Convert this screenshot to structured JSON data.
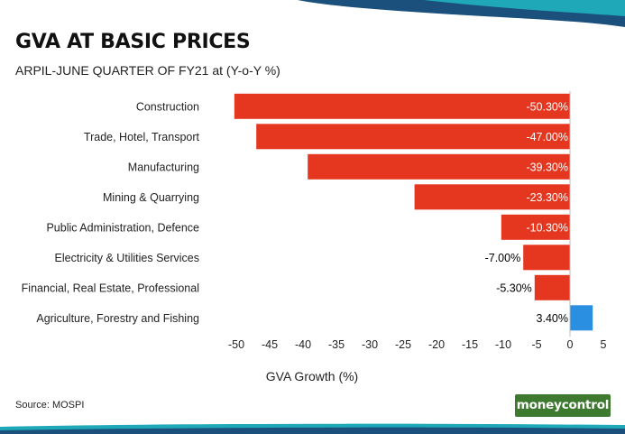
{
  "title": "GVA AT BASIC PRICES",
  "subtitle": "ARPIL-JUNE QUARTER OF FY21 at (Y-o-Y %)",
  "source": "Source: MOSPI",
  "logo_text": "moneycontrol",
  "colors": {
    "negative": "#e5371f",
    "positive": "#2a8fe0",
    "text": "#222222",
    "accent_teal": "#1fa8b8",
    "accent_navy": "#1b4f7c"
  },
  "chart_data": {
    "type": "bar",
    "orientation": "horizontal",
    "title": "GVA AT BASIC PRICES",
    "subtitle": "ARPIL-JUNE QUARTER OF FY21 at (Y-o-Y %)",
    "xlabel": "GVA Growth (%)",
    "ylabel": "",
    "xlim": [
      -50,
      5
    ],
    "xticks": [
      -50,
      -45,
      -40,
      -35,
      -30,
      -25,
      -20,
      -15,
      -10,
      -5,
      0,
      5
    ],
    "grid": false,
    "legend": "none",
    "categories": [
      "Construction",
      "Trade, Hotel, Transport",
      "Manufacturing",
      "Mining & Quarrying",
      "Public Administration, Defence",
      "Electricity & Utilities Services",
      "Financial, Real Estate, Professional",
      "Agriculture, Forestry and Fishing"
    ],
    "values": [
      -50.3,
      -47.0,
      -39.3,
      -23.3,
      -10.3,
      -7.0,
      -5.3,
      3.4
    ],
    "labels": [
      "-50.30%",
      "-47.00%",
      "-39.30%",
      "-23.30%",
      "-10.30%",
      "-7.00%",
      "-5.30%",
      "3.40%"
    ]
  }
}
